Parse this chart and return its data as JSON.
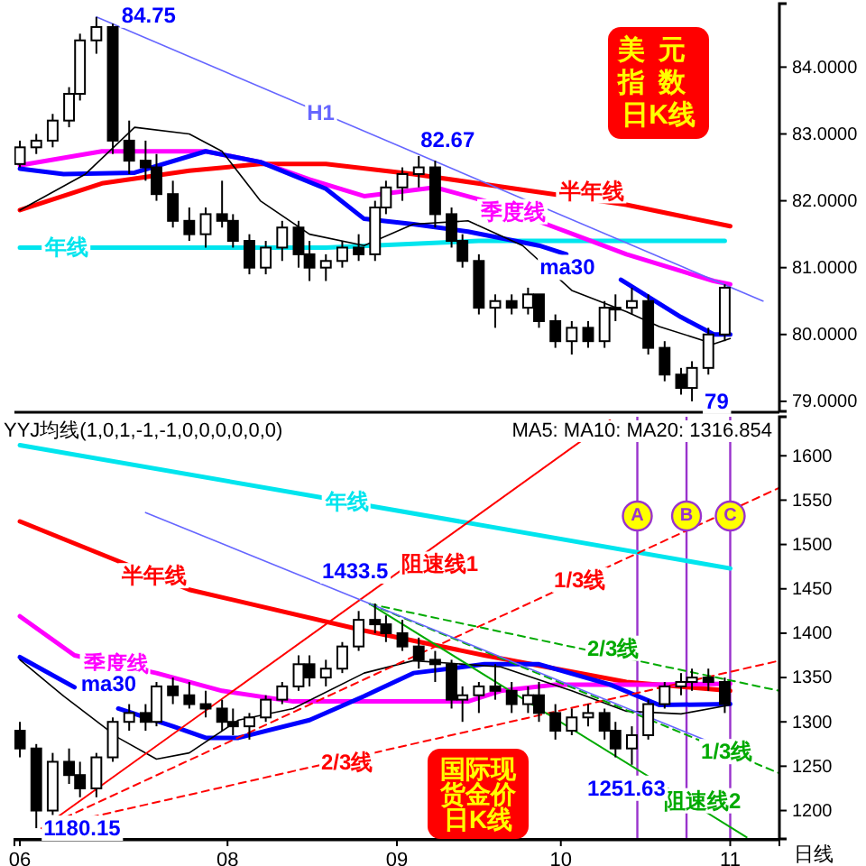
{
  "chart_data": [
    {
      "type": "candlestick",
      "title": "美元指数日K线",
      "x": [
        "--06-24",
        "--06-27",
        "--06-30",
        "--07-03",
        "--07-05",
        "--07-08",
        "--07-11",
        "--07-14",
        "--07-17",
        "--07-19",
        "--07-22",
        "--07-25",
        "--07-28",
        "--07-31",
        "--08-02",
        "--08-05",
        "--08-08",
        "--08-11",
        "--08-14",
        "--08-16",
        "--08-19",
        "--08-22",
        "--08-25",
        "--08-28",
        "--08-30",
        "--09-02",
        "--09-05",
        "--09-08",
        "--09-11",
        "--09-13",
        "--09-16",
        "--09-19",
        "--09-22",
        "--09-25",
        "--09-27",
        "--09-30",
        "--10-03",
        "--10-06",
        "--10-09",
        "--10-11",
        "--10-14",
        "--10-17",
        "--10-20",
        "--10-23",
        "--10-25",
        "--10-28",
        "--10-31"
      ],
      "ohlc": [
        [
          82.55,
          82.9,
          82.5,
          82.8
        ],
        [
          82.8,
          83.0,
          82.7,
          82.9
        ],
        [
          82.9,
          83.3,
          82.8,
          83.2
        ],
        [
          83.2,
          83.7,
          83.1,
          83.6
        ],
        [
          83.6,
          84.5,
          83.5,
          84.4
        ],
        [
          84.4,
          84.75,
          84.2,
          84.6
        ],
        [
          84.6,
          84.65,
          82.7,
          82.9
        ],
        [
          82.9,
          83.2,
          82.4,
          82.6
        ],
        [
          82.6,
          82.9,
          82.3,
          82.5
        ],
        [
          82.5,
          82.7,
          82.0,
          82.1
        ],
        [
          82.1,
          82.3,
          81.6,
          81.7
        ],
        [
          81.7,
          81.9,
          81.4,
          81.5
        ],
        [
          81.5,
          81.9,
          81.3,
          81.8
        ],
        [
          81.8,
          82.3,
          81.6,
          81.7
        ],
        [
          81.7,
          81.8,
          81.3,
          81.4
        ],
        [
          81.4,
          81.5,
          80.9,
          81.0
        ],
        [
          81.0,
          81.4,
          80.9,
          81.3
        ],
        [
          81.3,
          81.7,
          81.1,
          81.6
        ],
        [
          81.6,
          81.7,
          81.0,
          81.2
        ],
        [
          81.2,
          81.4,
          80.8,
          81.0
        ],
        [
          81.0,
          81.2,
          80.8,
          81.1
        ],
        [
          81.1,
          81.4,
          81.0,
          81.3
        ],
        [
          81.3,
          81.5,
          81.1,
          81.2
        ],
        [
          81.2,
          82.0,
          81.1,
          81.9
        ],
        [
          81.9,
          82.3,
          81.8,
          82.2
        ],
        [
          82.2,
          82.5,
          82.0,
          82.4
        ],
        [
          82.4,
          82.67,
          82.2,
          82.5
        ],
        [
          82.5,
          82.6,
          81.6,
          81.8
        ],
        [
          81.8,
          81.9,
          81.3,
          81.4
        ],
        [
          81.4,
          81.5,
          81.0,
          81.1
        ],
        [
          81.1,
          81.2,
          80.3,
          80.4
        ],
        [
          80.4,
          80.6,
          80.1,
          80.5
        ],
        [
          80.5,
          80.6,
          80.3,
          80.4
        ],
        [
          80.4,
          80.7,
          80.3,
          80.6
        ],
        [
          80.6,
          80.6,
          80.1,
          80.2
        ],
        [
          80.2,
          80.3,
          79.8,
          79.9
        ],
        [
          79.9,
          80.2,
          79.7,
          80.1
        ],
        [
          80.1,
          80.2,
          79.8,
          79.9
        ],
        [
          79.9,
          80.5,
          79.8,
          80.4
        ],
        [
          80.4,
          80.6,
          80.2,
          80.4
        ],
        [
          80.4,
          80.7,
          80.3,
          80.5
        ],
        [
          80.5,
          80.6,
          79.7,
          79.8
        ],
        [
          79.8,
          79.9,
          79.3,
          79.4
        ],
        [
          79.4,
          79.5,
          79.1,
          79.2
        ],
        [
          79.2,
          79.6,
          79.0,
          79.5
        ],
        [
          79.5,
          80.1,
          79.4,
          80.0
        ],
        [
          80.0,
          80.75,
          79.9,
          80.7
        ]
      ],
      "series": [
        {
          "type": "line",
          "name": "年线",
          "color": "#00e5ee",
          "x": [
            "--06-24",
            "--08-19",
            "--09-16",
            "--10-31"
          ],
          "values": [
            81.3,
            81.3,
            81.4,
            81.4
          ]
        },
        {
          "type": "line",
          "name": "半年线",
          "color": "#ff0000",
          "x": [
            "--06-24",
            "--07-09",
            "--07-25",
            "--08-07",
            "--08-19",
            "--09-04",
            "--09-27",
            "--10-13",
            "--11-01"
          ],
          "values": [
            81.86,
            82.26,
            82.45,
            82.55,
            82.55,
            82.4,
            82.13,
            81.94,
            81.62
          ]
        },
        {
          "type": "line",
          "name": "季度线",
          "color": "#ff00ff",
          "x": [
            "--06-24",
            "--07-09",
            "--07-28",
            "--08-07",
            "--08-16",
            "--08-26",
            "--09-08",
            "--09-17",
            "--09-30",
            "--10-13",
            "--10-29",
            "--11-01"
          ],
          "values": [
            82.53,
            82.74,
            82.74,
            82.58,
            82.32,
            82.07,
            82.2,
            82.0,
            81.6,
            81.2,
            80.8,
            80.75
          ]
        },
        {
          "type": "line",
          "name": "ma30",
          "color": "#0000ff",
          "x": [
            "--06-24",
            "--07-02",
            "--07-15",
            "--07-28",
            "--08-07",
            "--08-19",
            "--08-26",
            "--09-04",
            "--09-14",
            "--09-27",
            "--10-02",
            "--10-04",
            "--10-12",
            "--10-23",
            "--10-29",
            "--11-01"
          ],
          "values": [
            82.48,
            82.4,
            82.42,
            82.74,
            82.58,
            82.18,
            81.73,
            81.65,
            81.54,
            81.33,
            81.2,
            null,
            80.82,
            80.26,
            80.0,
            80.0
          ]
        },
        {
          "type": "line",
          "color": "#000000",
          "x": [
            "--06-24",
            "--07-06",
            "--07-15",
            "--07-25",
            "--07-31",
            "--08-07",
            "--08-16",
            "--08-26",
            "--09-04",
            "--09-14",
            "--09-24",
            "--10-03",
            "--10-13",
            "--10-19",
            "--10-29",
            "--11-01"
          ],
          "values": [
            81.86,
            82.4,
            83.1,
            83.0,
            82.74,
            82.0,
            81.5,
            81.33,
            81.65,
            81.7,
            81.33,
            80.66,
            80.34,
            80.12,
            79.86,
            79.94
          ]
        },
        {
          "type": "line",
          "name": "H1",
          "color": "#6666ff",
          "x": [
            "--07-08",
            "--11-07"
          ],
          "values": [
            84.75,
            80.5
          ]
        }
      ],
      "xlim": [
        "--06-23",
        "--11-10"
      ],
      "ylim": [
        78.85,
        84.95
      ],
      "yticks": [
        {
          "value": 79,
          "label": "79.0000"
        },
        {
          "value": 80,
          "label": "80.0000"
        },
        {
          "value": 81,
          "label": "81.0000"
        },
        {
          "value": 82,
          "label": "82.0000"
        },
        {
          "value": 83,
          "label": "83.0000"
        },
        {
          "value": 84,
          "label": "84.0000"
        }
      ],
      "tick_labels": "y",
      "annotations": [
        {
          "text": "84.75",
          "x": "--07-08",
          "y": 84.75
        },
        {
          "text": "82.67",
          "x": "--09-05",
          "y": 82.67
        },
        {
          "text": "79",
          "x": "--10-25",
          "y": 79.0
        }
      ]
    },
    {
      "type": "candlestick",
      "title": "国际现货金价日K线",
      "x": [
        "--06-24",
        "--06-27",
        "--06-30",
        "--07-03",
        "--07-05",
        "--07-08",
        "--07-11",
        "--07-14",
        "--07-17",
        "--07-19",
        "--07-22",
        "--07-25",
        "--07-28",
        "--07-31",
        "--08-02",
        "--08-05",
        "--08-08",
        "--08-11",
        "--08-14",
        "--08-16",
        "--08-19",
        "--08-22",
        "--08-25",
        "--08-28",
        "--08-30",
        "--09-02",
        "--09-05",
        "--09-08",
        "--09-11",
        "--09-13",
        "--09-16",
        "--09-19",
        "--09-22",
        "--09-25",
        "--09-27",
        "--09-30",
        "--10-03",
        "--10-06",
        "--10-09",
        "--10-11",
        "--10-14",
        "--10-17",
        "--10-20",
        "--10-23",
        "--10-25",
        "--10-28",
        "--10-31"
      ],
      "ohlc": [
        [
          1290,
          1300,
          1260,
          1270
        ],
        [
          1270,
          1275,
          1180.15,
          1200
        ],
        [
          1200,
          1265,
          1195,
          1255
        ],
        [
          1255,
          1270,
          1230,
          1240
        ],
        [
          1240,
          1255,
          1215,
          1225
        ],
        [
          1225,
          1265,
          1215,
          1260
        ],
        [
          1260,
          1305,
          1255,
          1300
        ],
        [
          1300,
          1320,
          1290,
          1310
        ],
        [
          1310,
          1320,
          1290,
          1300
        ],
        [
          1300,
          1345,
          1295,
          1340
        ],
        [
          1340,
          1350,
          1320,
          1330
        ],
        [
          1330,
          1345,
          1315,
          1320
        ],
        [
          1320,
          1335,
          1305,
          1315
        ],
        [
          1315,
          1325,
          1290,
          1300
        ],
        [
          1300,
          1315,
          1285,
          1295
        ],
        [
          1295,
          1310,
          1280,
          1305
        ],
        [
          1305,
          1330,
          1300,
          1325
        ],
        [
          1325,
          1345,
          1320,
          1340
        ],
        [
          1340,
          1375,
          1335,
          1365
        ],
        [
          1365,
          1375,
          1340,
          1350
        ],
        [
          1350,
          1370,
          1340,
          1360
        ],
        [
          1360,
          1390,
          1355,
          1385
        ],
        [
          1385,
          1425,
          1380,
          1415
        ],
        [
          1415,
          1433.5,
          1400,
          1410
        ],
        [
          1410,
          1420,
          1390,
          1400
        ],
        [
          1400,
          1415,
          1380,
          1385
        ],
        [
          1385,
          1395,
          1360,
          1370
        ],
        [
          1370,
          1380,
          1345,
          1365
        ],
        [
          1365,
          1370,
          1315,
          1325
        ],
        [
          1325,
          1340,
          1300,
          1330
        ],
        [
          1330,
          1345,
          1310,
          1340
        ],
        [
          1340,
          1365,
          1325,
          1335
        ],
        [
          1335,
          1345,
          1310,
          1320
        ],
        [
          1320,
          1340,
          1310,
          1330
        ],
        [
          1330,
          1345,
          1300,
          1310
        ],
        [
          1310,
          1320,
          1280,
          1290
        ],
        [
          1290,
          1315,
          1285,
          1305
        ],
        [
          1305,
          1320,
          1295,
          1310
        ],
        [
          1310,
          1315,
          1280,
          1290
        ],
        [
          1290,
          1300,
          1260,
          1270
        ],
        [
          1270,
          1295,
          1251.63,
          1285
        ],
        [
          1285,
          1325,
          1280,
          1320
        ],
        [
          1320,
          1345,
          1315,
          1340
        ],
        [
          1340,
          1355,
          1330,
          1345
        ],
        [
          1345,
          1360,
          1335,
          1350
        ],
        [
          1350,
          1360,
          1335,
          1345
        ],
        [
          1345,
          1350,
          1310,
          1320
        ]
      ],
      "series": [
        {
          "type": "line",
          "name": "年线",
          "color": "#00e5ee",
          "x": [
            "--06-24",
            "--11-01"
          ],
          "values": [
            1612,
            1473
          ]
        },
        {
          "type": "line",
          "name": "半年线",
          "color": "#ff0000",
          "x": [
            "--06-24",
            "--07-25",
            "--08-26",
            "--09-17",
            "--10-13",
            "--11-01"
          ],
          "values": [
            1526,
            1449,
            1403,
            1375,
            1345,
            1335
          ]
        },
        {
          "type": "line",
          "name": "季度线",
          "color": "#ff00ff",
          "x": [
            "--06-24",
            "--07-04",
            "--07-19",
            "--07-31",
            "--08-13",
            "--08-26",
            "--09-14",
            "--09-20",
            "--09-30",
            "--10-16",
            "--11-01"
          ],
          "values": [
            1419,
            1375,
            1355,
            1335,
            1323,
            1323,
            1323,
            1335,
            1342,
            1342,
            1343
          ]
        },
        {
          "type": "line",
          "name": "ma30",
          "color": "#0000ff",
          "x": [
            "--06-24",
            "--07-04",
            "--07-07",
            "--07-12",
            "--07-22",
            "--07-28",
            "--08-03",
            "--08-16",
            "--08-26",
            "--09-04",
            "--09-17",
            "--09-27",
            "--10-10",
            "--10-19",
            "--11-01"
          ],
          "values": [
            1373,
            1339,
            null,
            1315,
            1295,
            1282,
            1282,
            1302,
            1329,
            1355,
            1365,
            1365,
            1342,
            1319,
            1320
          ]
        },
        {
          "type": "line",
          "color": "#000000",
          "x": [
            "--06-24",
            "--07-02",
            "--07-12",
            "--07-19",
            "--07-25",
            "--08-03",
            "--08-13",
            "--08-26",
            "--09-04",
            "--09-20",
            "--10-03",
            "--10-13",
            "--10-23",
            "--11-01"
          ],
          "values": [
            1370,
            1329,
            1282,
            1258,
            1265,
            1302,
            1315,
            1355,
            1369,
            1362,
            1335,
            1312,
            1309,
            1319
          ]
        },
        {
          "type": "line",
          "name": "阻速线1",
          "color": "#ff0000",
          "x": [
            "--06-28",
            "--10-10"
          ],
          "values": [
            1180,
            1640
          ]
        },
        {
          "type": "line",
          "name": "1/3线",
          "color": "#ff0000",
          "line_style": "dashed",
          "x": [
            "--06-28",
            "--11-10"
          ],
          "values": [
            1180,
            1564
          ]
        },
        {
          "type": "line",
          "name": "2/3线",
          "color": "#ff0000",
          "line_style": "dashed",
          "x": [
            "--06-28",
            "--11-10"
          ],
          "values": [
            1180,
            1369
          ]
        },
        {
          "type": "line",
          "name": "阻速线2",
          "color": "#00aa00",
          "x": [
            "--08-27",
            "--11-04"
          ],
          "values": [
            1433,
            1170
          ]
        },
        {
          "type": "line",
          "name": "2/3线",
          "color": "#00aa00",
          "line_style": "dashed",
          "x": [
            "--08-27",
            "--11-10"
          ],
          "values": [
            1433,
            1335
          ]
        },
        {
          "type": "line",
          "name": "1/3线",
          "color": "#00aa00",
          "line_style": "dashed",
          "x": [
            "--08-27",
            "--11-10"
          ],
          "values": [
            1433,
            1242
          ]
        },
        {
          "type": "line",
          "color": "#6666ff",
          "x": [
            "--07-17",
            "--10-28"
          ],
          "values": [
            1536,
            1278
          ]
        }
      ],
      "xlim": [
        "--06-23",
        "--11-10"
      ],
      "ylim": [
        1168,
        1644
      ],
      "xticks": [
        {
          "value": "--06-24",
          "label": "06"
        },
        {
          "value": "--08-01",
          "label": "08"
        },
        {
          "value": "--09-01",
          "label": "09"
        },
        {
          "value": "--10-01",
          "label": "10"
        },
        {
          "value": "--11-01",
          "label": "11"
        }
      ],
      "yticks": [
        1200,
        1250,
        1300,
        1350,
        1400,
        1450,
        1500,
        1550,
        1600
      ],
      "ref_lines": [
        {
          "axis": "x",
          "value": "--10-15",
          "label": "A",
          "color": "#9933cc"
        },
        {
          "axis": "x",
          "value": "--10-24",
          "label": "B",
          "color": "#9933cc"
        },
        {
          "axis": "x",
          "value": "--11-01",
          "label": "C",
          "color": "#9933cc"
        }
      ],
      "annotations": [
        "YYJ均线(1,0,1,-1,-1,0,0,0,0,0,0)",
        "MA5: MA10: MA20: 1316.854",
        "日线",
        {
          "text": "1433.5",
          "x": "--08-28",
          "y": 1433.5
        },
        {
          "text": "1251.63",
          "x": "--10-14",
          "y": 1251.63
        },
        {
          "text": "1180.15",
          "x": "--06-27",
          "y": 1180.15
        }
      ]
    }
  ]
}
